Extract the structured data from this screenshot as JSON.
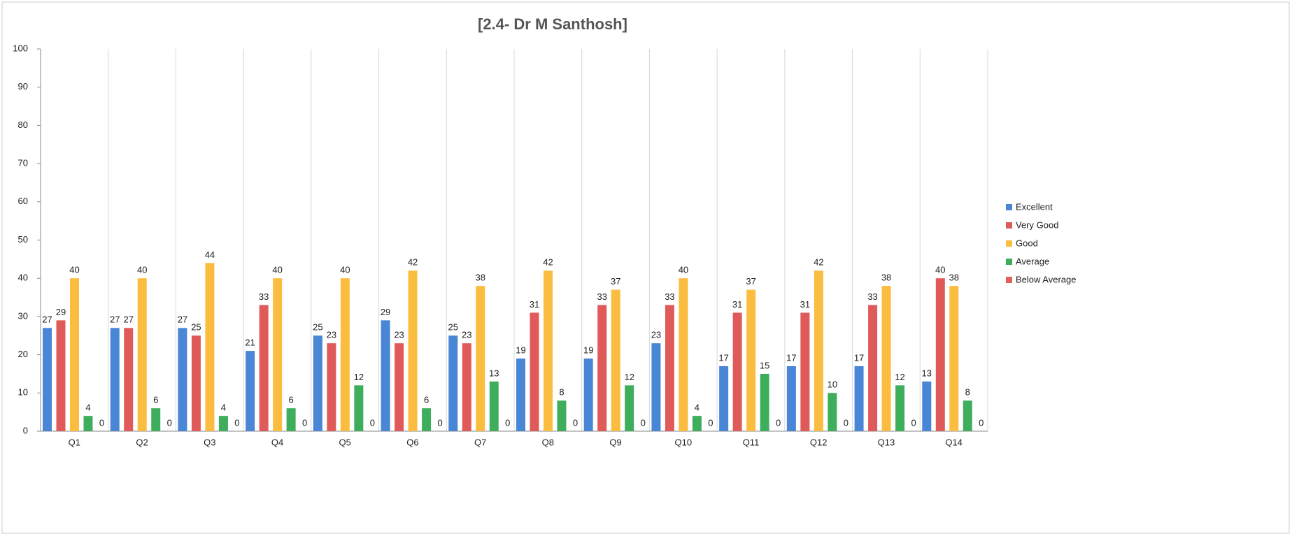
{
  "chart_data": {
    "type": "bar",
    "title": "[2.4- Dr M Santhosh]",
    "categories": [
      "Q1",
      "Q2",
      "Q3",
      "Q4",
      "Q5",
      "Q6",
      "Q7",
      "Q8",
      "Q9",
      "Q10",
      "Q11",
      "Q12",
      "Q13",
      "Q14"
    ],
    "series": [
      {
        "name": "Excellent",
        "color": "#4a86d6",
        "values": [
          27,
          27,
          27,
          21,
          25,
          29,
          25,
          19,
          19,
          23,
          17,
          17,
          17,
          13
        ]
      },
      {
        "name": "Very Good",
        "color": "#e05a5a",
        "values": [
          29,
          27,
          25,
          33,
          23,
          23,
          23,
          31,
          33,
          33,
          31,
          31,
          33,
          40
        ]
      },
      {
        "name": "Good",
        "color": "#fbbd3f",
        "values": [
          40,
          40,
          44,
          40,
          40,
          42,
          38,
          42,
          37,
          40,
          37,
          42,
          38,
          38
        ]
      },
      {
        "name": "Average",
        "color": "#3fae5c",
        "values": [
          4,
          6,
          4,
          6,
          12,
          6,
          13,
          8,
          12,
          4,
          15,
          10,
          12,
          8
        ]
      },
      {
        "name": "Below Average",
        "color": "#e06060",
        "values": [
          0,
          0,
          0,
          0,
          0,
          0,
          0,
          0,
          0,
          0,
          0,
          0,
          0,
          0
        ]
      }
    ],
    "ylim": [
      0,
      100
    ],
    "yticks": [
      0,
      10,
      20,
      30,
      40,
      50,
      60,
      70,
      80,
      90,
      100
    ],
    "legend": "right"
  }
}
